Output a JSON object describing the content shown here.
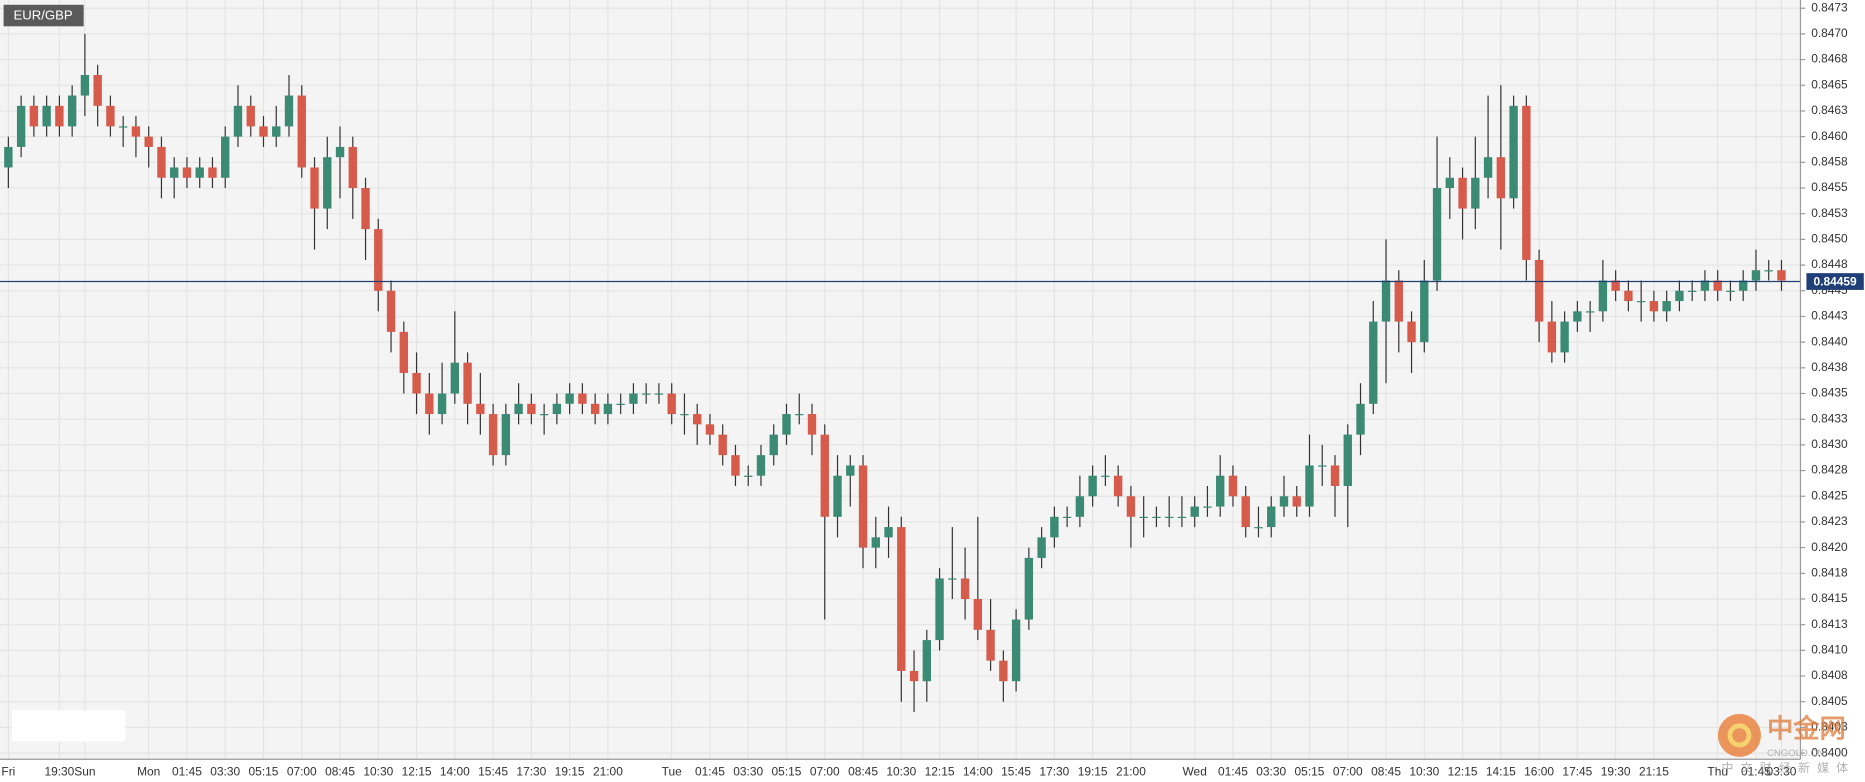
{
  "chart_data": {
    "type": "candlestick",
    "title": "EUR/GBP",
    "up_color": "#3a8a74",
    "down_color": "#d65b4b",
    "grid": true,
    "ylim": [
      0.83994,
      0.84733
    ],
    "yticks": [
      {
        "value": 0.84,
        "label": "0.8400"
      },
      {
        "value": 0.84025,
        "label": "0.8403"
      },
      0.8405,
      {
        "value": 0.84075,
        "label": "0.8408"
      },
      {
        "value": 0.841,
        "label": "0.8410"
      },
      {
        "value": 0.84125,
        "label": "0.8413"
      },
      0.8415,
      {
        "value": 0.84175,
        "label": "0.8418"
      },
      {
        "value": 0.842,
        "label": "0.8420"
      },
      {
        "value": 0.84225,
        "label": "0.8423"
      },
      0.8425,
      {
        "value": 0.84275,
        "label": "0.8428"
      },
      {
        "value": 0.843,
        "label": "0.8430"
      },
      {
        "value": 0.84325,
        "label": "0.8433"
      },
      0.8435,
      {
        "value": 0.84375,
        "label": "0.8438"
      },
      {
        "value": 0.844,
        "label": "0.8440"
      },
      {
        "value": 0.84425,
        "label": "0.8443"
      },
      0.8445,
      {
        "value": 0.84475,
        "label": "0.8448"
      },
      {
        "value": 0.845,
        "label": "0.8450"
      },
      {
        "value": 0.84525,
        "label": "0.8453"
      },
      0.8455,
      {
        "value": 0.84575,
        "label": "0.8458"
      },
      {
        "value": 0.846,
        "label": "0.8460"
      },
      {
        "value": 0.84625,
        "label": "0.8463"
      },
      0.8465,
      {
        "value": 0.84675,
        "label": "0.8468"
      },
      {
        "value": 0.847,
        "label": "0.8470"
      },
      {
        "value": 0.84725,
        "label": "0.8473"
      }
    ],
    "current_price": 0.84459,
    "current_color": "#203f78",
    "x": [
      "Fri",
      null,
      null,
      null,
      "19:30",
      null,
      "Sun",
      null,
      null,
      null,
      null,
      "Mon",
      null,
      null,
      "01:45",
      null,
      null,
      "03:30",
      null,
      null,
      "05:15",
      null,
      null,
      "07:00",
      null,
      null,
      "08:45",
      null,
      null,
      "10:30",
      null,
      null,
      "12:15",
      null,
      null,
      "14:00",
      null,
      null,
      "15:45",
      null,
      null,
      "17:30",
      null,
      null,
      "19:15",
      null,
      null,
      "21:00",
      null,
      null,
      null,
      null,
      "Tue",
      null,
      null,
      "01:45",
      null,
      null,
      "03:30",
      null,
      null,
      "05:15",
      null,
      null,
      "07:00",
      null,
      null,
      "08:45",
      null,
      null,
      "10:30",
      null,
      null,
      "12:15",
      null,
      null,
      "14:00",
      null,
      null,
      "15:45",
      null,
      null,
      "17:30",
      null,
      null,
      "19:15",
      null,
      null,
      "21:00",
      null,
      null,
      null,
      null,
      "Wed",
      null,
      null,
      "01:45",
      null,
      null,
      "03:30",
      null,
      null,
      "05:15",
      null,
      null,
      "07:00",
      null,
      null,
      "08:45",
      null,
      null,
      "10:30",
      null,
      null,
      "12:15",
      null,
      null,
      "14:15",
      null,
      null,
      "16:00",
      null,
      null,
      "17:45",
      null,
      null,
      "19:30",
      null,
      null,
      "21:15",
      null,
      null,
      null,
      null,
      "Thu",
      null,
      null,
      "01:45",
      null,
      "03:30"
    ],
    "candles": [
      [
        0.8457,
        0.846,
        0.8455,
        0.8459
      ],
      [
        0.8459,
        0.8464,
        0.8458,
        0.8463
      ],
      [
        0.8463,
        0.8464,
        0.846,
        0.8461
      ],
      [
        0.8461,
        0.8464,
        0.846,
        0.8463
      ],
      [
        0.8463,
        0.8464,
        0.846,
        0.8461
      ],
      [
        0.8461,
        0.8465,
        0.846,
        0.8464
      ],
      [
        0.8464,
        0.847,
        0.8462,
        0.8466
      ],
      [
        0.8466,
        0.8467,
        0.8461,
        0.8463
      ],
      [
        0.8463,
        0.8464,
        0.846,
        0.8461
      ],
      [
        0.8461,
        0.8462,
        0.8459,
        0.8461
      ],
      [
        0.8461,
        0.8462,
        0.8458,
        0.846
      ],
      [
        0.846,
        0.8461,
        0.8457,
        0.8459
      ],
      [
        0.8459,
        0.846,
        0.8454,
        0.8456
      ],
      [
        0.8456,
        0.8458,
        0.8454,
        0.8457
      ],
      [
        0.8457,
        0.8458,
        0.8455,
        0.8456
      ],
      [
        0.8456,
        0.8458,
        0.8455,
        0.8457
      ],
      [
        0.8457,
        0.8458,
        0.8455,
        0.8456
      ],
      [
        0.8456,
        0.8461,
        0.8455,
        0.846
      ],
      [
        0.846,
        0.8465,
        0.8459,
        0.8463
      ],
      [
        0.8463,
        0.8464,
        0.846,
        0.8461
      ],
      [
        0.8461,
        0.8462,
        0.8459,
        0.846
      ],
      [
        0.846,
        0.8463,
        0.8459,
        0.8461
      ],
      [
        0.8461,
        0.8466,
        0.846,
        0.8464
      ],
      [
        0.8464,
        0.8465,
        0.8456,
        0.8457
      ],
      [
        0.8457,
        0.8458,
        0.8449,
        0.8453
      ],
      [
        0.8453,
        0.846,
        0.8451,
        0.8458
      ],
      [
        0.8458,
        0.8461,
        0.8454,
        0.8459
      ],
      [
        0.8459,
        0.846,
        0.8452,
        0.8455
      ],
      [
        0.8455,
        0.8456,
        0.8448,
        0.8451
      ],
      [
        0.8451,
        0.8452,
        0.8443,
        0.8445
      ],
      [
        0.8445,
        0.8446,
        0.8439,
        0.8441
      ],
      [
        0.8441,
        0.8442,
        0.8435,
        0.8437
      ],
      [
        0.8437,
        0.8439,
        0.8433,
        0.8435
      ],
      [
        0.8435,
        0.8437,
        0.8431,
        0.8433
      ],
      [
        0.8433,
        0.8438,
        0.8432,
        0.8435
      ],
      [
        0.8435,
        0.8443,
        0.8434,
        0.8438
      ],
      [
        0.8438,
        0.8439,
        0.8432,
        0.8434
      ],
      [
        0.8434,
        0.8437,
        0.8431,
        0.8433
      ],
      [
        0.8433,
        0.8434,
        0.8428,
        0.8429
      ],
      [
        0.8429,
        0.8434,
        0.8428,
        0.8433
      ],
      [
        0.8433,
        0.8436,
        0.8432,
        0.8434
      ],
      [
        0.8434,
        0.8435,
        0.8432,
        0.8433
      ],
      [
        0.8433,
        0.8434,
        0.8431,
        0.8433
      ],
      [
        0.8433,
        0.8435,
        0.8432,
        0.8434
      ],
      [
        0.8434,
        0.8436,
        0.8433,
        0.8435
      ],
      [
        0.8435,
        0.8436,
        0.8433,
        0.8434
      ],
      [
        0.8434,
        0.8435,
        0.8432,
        0.8433
      ],
      [
        0.8433,
        0.8435,
        0.8432,
        0.8434
      ],
      [
        0.8434,
        0.8435,
        0.8433,
        0.8434
      ],
      [
        0.8434,
        0.8436,
        0.8433,
        0.8435
      ],
      [
        0.8435,
        0.8436,
        0.8434,
        0.8435
      ],
      [
        0.8435,
        0.8436,
        0.8434,
        0.8435
      ],
      [
        0.8435,
        0.8436,
        0.8432,
        0.8433
      ],
      [
        0.8433,
        0.8435,
        0.8431,
        0.8433
      ],
      [
        0.8433,
        0.8434,
        0.843,
        0.8432
      ],
      [
        0.8432,
        0.8433,
        0.843,
        0.8431
      ],
      [
        0.8431,
        0.8432,
        0.8428,
        0.8429
      ],
      [
        0.8429,
        0.843,
        0.8426,
        0.8427
      ],
      [
        0.8427,
        0.8428,
        0.8426,
        0.8427
      ],
      [
        0.8427,
        0.843,
        0.8426,
        0.8429
      ],
      [
        0.8429,
        0.8432,
        0.8428,
        0.8431
      ],
      [
        0.8431,
        0.8434,
        0.843,
        0.8433
      ],
      [
        0.8433,
        0.8435,
        0.8432,
        0.8433
      ],
      [
        0.8433,
        0.8434,
        0.8429,
        0.8431
      ],
      [
        0.8431,
        0.8432,
        0.8413,
        0.8423
      ],
      [
        0.8423,
        0.8429,
        0.8421,
        0.8427
      ],
      [
        0.8427,
        0.8429,
        0.8424,
        0.8428
      ],
      [
        0.8428,
        0.8429,
        0.8418,
        0.842
      ],
      [
        0.842,
        0.8423,
        0.8418,
        0.8421
      ],
      [
        0.8421,
        0.8424,
        0.8419,
        0.8422
      ],
      [
        0.8422,
        0.8423,
        0.8405,
        0.8408
      ],
      [
        0.8408,
        0.841,
        0.8404,
        0.8407
      ],
      [
        0.8407,
        0.8412,
        0.8405,
        0.8411
      ],
      [
        0.8411,
        0.8418,
        0.841,
        0.8417
      ],
      [
        0.8417,
        0.8422,
        0.8415,
        0.8417
      ],
      [
        0.8417,
        0.842,
        0.8413,
        0.8415
      ],
      [
        0.8415,
        0.8423,
        0.8411,
        0.8412
      ],
      [
        0.8412,
        0.8415,
        0.8408,
        0.8409
      ],
      [
        0.8409,
        0.841,
        0.8405,
        0.8407
      ],
      [
        0.8407,
        0.8414,
        0.8406,
        0.8413
      ],
      [
        0.8413,
        0.842,
        0.8412,
        0.8419
      ],
      [
        0.8419,
        0.8422,
        0.8418,
        0.8421
      ],
      [
        0.8421,
        0.8424,
        0.842,
        0.8423
      ],
      [
        0.8423,
        0.8424,
        0.8422,
        0.8423
      ],
      [
        0.8423,
        0.8427,
        0.8422,
        0.8425
      ],
      [
        0.8425,
        0.8428,
        0.8424,
        0.8427
      ],
      [
        0.8427,
        0.8429,
        0.8426,
        0.8427
      ],
      [
        0.8427,
        0.8428,
        0.8424,
        0.8425
      ],
      [
        0.8425,
        0.8426,
        0.842,
        0.8423
      ],
      [
        0.8423,
        0.8425,
        0.8421,
        0.8423
      ],
      [
        0.8423,
        0.8424,
        0.8422,
        0.8423
      ],
      [
        0.8423,
        0.8425,
        0.8422,
        0.8423
      ],
      [
        0.8423,
        0.8425,
        0.8422,
        0.8423
      ],
      [
        0.8423,
        0.8425,
        0.8422,
        0.8424
      ],
      [
        0.8424,
        0.8426,
        0.8423,
        0.8424
      ],
      [
        0.8424,
        0.8429,
        0.8423,
        0.8427
      ],
      [
        0.8427,
        0.8428,
        0.8424,
        0.8425
      ],
      [
        0.8425,
        0.8426,
        0.8421,
        0.8422
      ],
      [
        0.8422,
        0.8424,
        0.8421,
        0.8422
      ],
      [
        0.8422,
        0.8425,
        0.8421,
        0.8424
      ],
      [
        0.8424,
        0.8427,
        0.8423,
        0.8425
      ],
      [
        0.8425,
        0.8426,
        0.8423,
        0.8424
      ],
      [
        0.8424,
        0.8431,
        0.8423,
        0.8428
      ],
      [
        0.8428,
        0.843,
        0.8426,
        0.8428
      ],
      [
        0.8428,
        0.8429,
        0.8423,
        0.8426
      ],
      [
        0.8426,
        0.8432,
        0.8422,
        0.8431
      ],
      [
        0.8431,
        0.8436,
        0.8429,
        0.8434
      ],
      [
        0.8434,
        0.8444,
        0.8433,
        0.8442
      ],
      [
        0.8442,
        0.845,
        0.8436,
        0.8446
      ],
      [
        0.8446,
        0.8447,
        0.8439,
        0.8442
      ],
      [
        0.8442,
        0.8443,
        0.8437,
        0.844
      ],
      [
        0.844,
        0.8448,
        0.8439,
        0.8446
      ],
      [
        0.8446,
        0.846,
        0.8445,
        0.8455
      ],
      [
        0.8455,
        0.8458,
        0.8452,
        0.8456
      ],
      [
        0.8456,
        0.8457,
        0.845,
        0.8453
      ],
      [
        0.8453,
        0.846,
        0.8451,
        0.8456
      ],
      [
        0.8456,
        0.8464,
        0.8454,
        0.8458
      ],
      [
        0.8458,
        0.8465,
        0.8449,
        0.8454
      ],
      [
        0.8454,
        0.8464,
        0.8453,
        0.8463
      ],
      [
        0.8463,
        0.8464,
        0.8446,
        0.8448
      ],
      [
        0.8448,
        0.8449,
        0.844,
        0.8442
      ],
      [
        0.8442,
        0.8444,
        0.8438,
        0.8439
      ],
      [
        0.8439,
        0.8443,
        0.8438,
        0.8442
      ],
      [
        0.8442,
        0.8444,
        0.8441,
        0.8443
      ],
      [
        0.8443,
        0.8444,
        0.8441,
        0.8443
      ],
      [
        0.8443,
        0.8448,
        0.8442,
        0.8446
      ],
      [
        0.8446,
        0.8447,
        0.8444,
        0.8445
      ],
      [
        0.8445,
        0.8446,
        0.8443,
        0.8444
      ],
      [
        0.8444,
        0.8446,
        0.8442,
        0.8444
      ],
      [
        0.8444,
        0.8445,
        0.8442,
        0.8443
      ],
      [
        0.8443,
        0.8445,
        0.8442,
        0.8444
      ],
      [
        0.8444,
        0.8446,
        0.8443,
        0.8445
      ],
      [
        0.8445,
        0.8446,
        0.8444,
        0.8445
      ],
      [
        0.8445,
        0.8447,
        0.8444,
        0.8446
      ],
      [
        0.8446,
        0.8447,
        0.8444,
        0.8445
      ],
      [
        0.8445,
        0.8446,
        0.8444,
        0.8445
      ],
      [
        0.8445,
        0.8447,
        0.8444,
        0.8446
      ],
      [
        0.8446,
        0.8449,
        0.8445,
        0.8447
      ],
      [
        0.8447,
        0.8448,
        0.8446,
        0.8447
      ],
      [
        0.8447,
        0.8448,
        0.8445,
        0.8446
      ]
    ],
    "watermark": {
      "name": "中金网",
      "site": "CNGOLD.CN",
      "slogan": "中文财经新媒体"
    }
  }
}
